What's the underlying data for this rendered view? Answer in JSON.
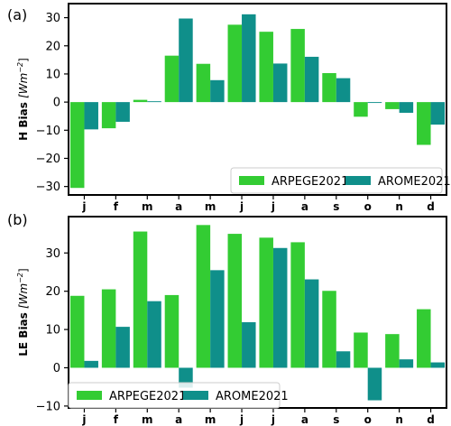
{
  "colors": {
    "arpege": "#33cc33",
    "arome": "#0f8f8a"
  },
  "chart_data": [
    {
      "type": "bar",
      "panel_label": "(a)",
      "ylabel": "H Bias",
      "ylabel_unit": "[Wm",
      "ylabel_exp": "−2",
      "ylabel_close": "]",
      "categories": [
        "j",
        "f",
        "m",
        "a",
        "m",
        "j",
        "j",
        "a",
        "s",
        "o",
        "n",
        "d"
      ],
      "ylim": [
        -33,
        35
      ],
      "yticks": [
        -30,
        -20,
        -10,
        0,
        10,
        20,
        30
      ],
      "ytick_labels": [
        "−30",
        "−20",
        "−10",
        "0",
        "10",
        "20",
        "30"
      ],
      "legend": "bottom-right",
      "series": [
        {
          "name": "ARPEGE2021",
          "values": [
            -30.5,
            -9.3,
            0.8,
            16.5,
            13.6,
            27.5,
            25,
            26,
            10.3,
            -5.2,
            -2.5,
            -15.2
          ]
        },
        {
          "name": "AROME2021",
          "values": [
            -9.7,
            -7,
            0.3,
            29.7,
            7.8,
            31.2,
            13.7,
            16.1,
            8.5,
            -0.3,
            -3.8,
            -8
          ]
        }
      ]
    },
    {
      "type": "bar",
      "panel_label": "(b)",
      "ylabel": "LE Bias",
      "ylabel_unit": "[Wm",
      "ylabel_exp": "−2",
      "ylabel_close": "]",
      "categories": [
        "j",
        "f",
        "m",
        "a",
        "m",
        "j",
        "j",
        "a",
        "s",
        "o",
        "n",
        "d"
      ],
      "ylim": [
        -10.5,
        39.5
      ],
      "yticks": [
        -10,
        0,
        10,
        20,
        30
      ],
      "ytick_labels": [
        "−10",
        "0",
        "10",
        "20",
        "30"
      ],
      "legend": "bottom-left",
      "series": [
        {
          "name": "ARPEGE2021",
          "values": [
            18.8,
            20.5,
            35.6,
            19,
            37.3,
            35,
            34,
            32.8,
            20.1,
            9.2,
            8.8,
            15.3
          ]
        },
        {
          "name": "AROME2021",
          "values": [
            1.8,
            10.7,
            17.4,
            -5.2,
            25.5,
            11.9,
            31.3,
            23.1,
            4.3,
            -8.5,
            2.2,
            1.4
          ]
        }
      ]
    }
  ]
}
